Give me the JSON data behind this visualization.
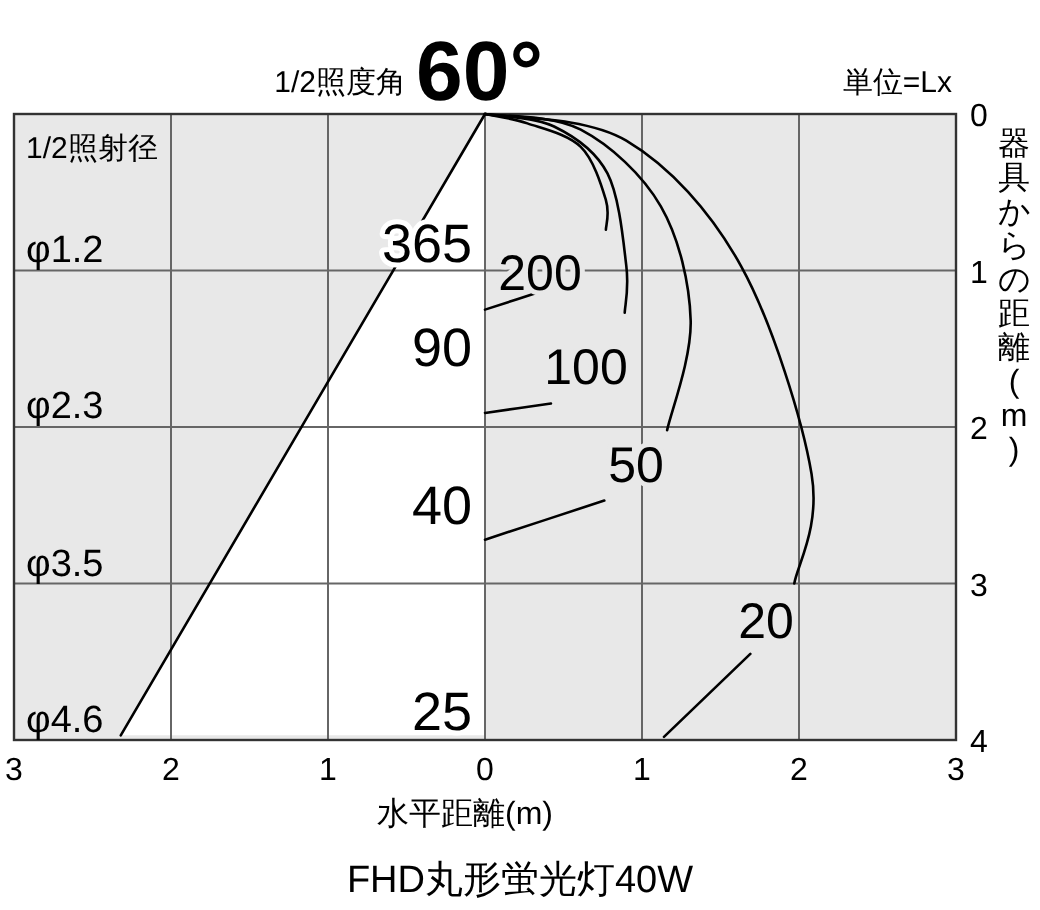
{
  "chart_data": {
    "type": "line",
    "title": "1/2照度角",
    "subtitle": "60°",
    "xlabel": "水平距離(m)",
    "ylabel": "器具からの距離(m)",
    "xlim": [
      -3,
      3
    ],
    "ylim": [
      4,
      0
    ],
    "xticks": [
      {
        "value": -3,
        "label": "3"
      },
      {
        "value": -2,
        "label": "2"
      },
      {
        "value": -1,
        "label": "1"
      },
      0,
      1,
      2,
      3
    ],
    "yticks": [
      0,
      1,
      2,
      3,
      4
    ],
    "grid": true,
    "series": [
      {
        "color": "#000000",
        "x": [
          0,
          -2.32
        ],
        "values": [
          0,
          3.97
        ]
      },
      {
        "color": "#000000",
        "x": [
          0,
          0.27,
          0.61,
          0.77,
          0.77,
          null,
          0.4,
          0
        ],
        "values": [
          0,
          0.06,
          0.21,
          0.55,
          0.74,
          null,
          1.12,
          1.25
        ]
      },
      {
        "color": "#000000",
        "x": [
          0,
          0.44,
          0.78,
          0.9,
          0.89,
          null,
          0.42,
          0
        ],
        "values": [
          0,
          0.08,
          0.38,
          0.97,
          1.27,
          null,
          1.85,
          1.91
        ]
      },
      {
        "color": "#000000",
        "x": [
          0,
          0.61,
          1.12,
          1.31,
          1.16,
          null,
          0.76,
          0
        ],
        "values": [
          0,
          0.1,
          0.59,
          1.32,
          2.02,
          null,
          2.47,
          2.72
        ]
      },
      {
        "color": "#000000",
        "x": [
          0,
          0.9,
          1.63,
          2.08,
          1.97,
          null,
          1.69,
          1.14
        ],
        "values": [
          0,
          0.17,
          0.97,
          2.3,
          3.0,
          null,
          3.45,
          3.98
        ]
      }
    ],
    "annotations": [
      "1/2照射径",
      "単位=Lx",
      "FHD丸形蛍光灯40W",
      "φ1.2",
      "φ2.3",
      "φ3.5",
      "φ4.6",
      "365",
      "90",
      "40",
      "25",
      "200",
      "100",
      "50",
      "20"
    ]
  }
}
